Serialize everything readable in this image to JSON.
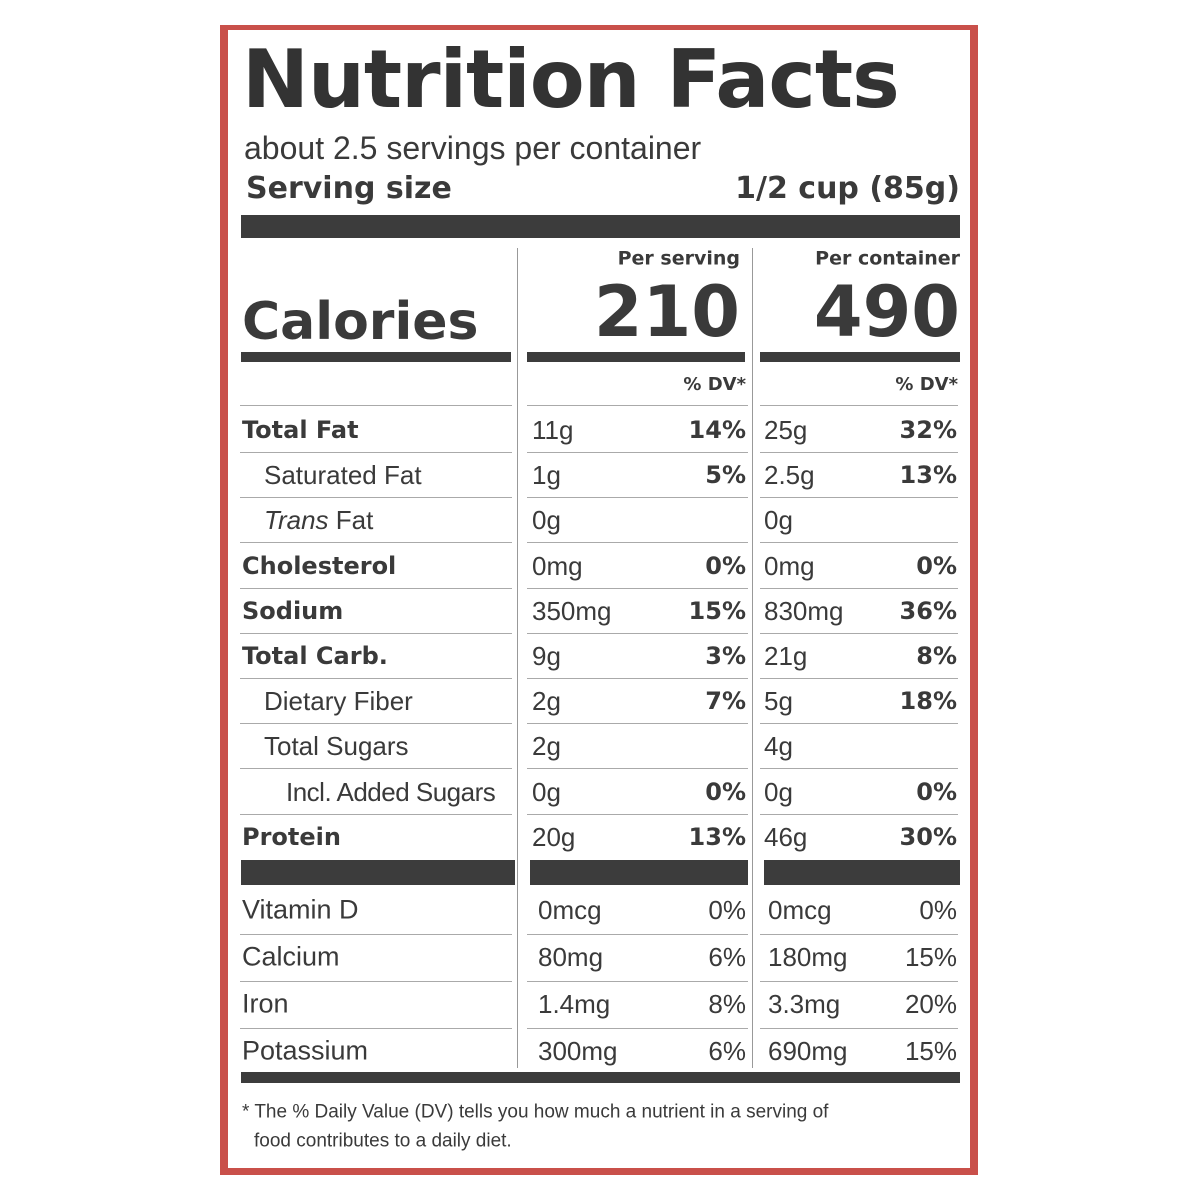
{
  "header": {
    "title": "Nutrition Facts",
    "servings": "about 2.5 servings per container",
    "serving_size_label": "Serving size",
    "serving_size": "1/2 cup (85g)"
  },
  "columns": [
    {
      "heading": "Per serving",
      "calories": 210,
      "dv_label": "% DV*"
    },
    {
      "heading": "Per container",
      "calories": 490,
      "dv_label": "% DV*"
    }
  ],
  "calories_label": "Calories",
  "nutrients": [
    {
      "label": "Total Fat",
      "serving": {
        "amount": "11g",
        "dv": "14%"
      },
      "container": {
        "amount": "25g",
        "dv": "32%"
      }
    },
    {
      "label": "Saturated Fat",
      "serving": {
        "amount": "1g",
        "dv": "5%"
      },
      "container": {
        "amount": "2.5g",
        "dv": "13%"
      }
    },
    {
      "label": [
        "Trans",
        "Fat"
      ],
      "serving": {
        "amount": "0g"
      },
      "container": {
        "amount": "0g"
      }
    },
    {
      "label": "Cholesterol",
      "serving": {
        "amount": "0mg",
        "dv": "0%"
      },
      "container": {
        "amount": "0mg",
        "dv": "0%"
      }
    },
    {
      "label": "Sodium",
      "serving": {
        "amount": "350mg",
        "dv": "15%"
      },
      "container": {
        "amount": "830mg",
        "dv": "36%"
      }
    },
    {
      "label": "Total Carb.",
      "serving": {
        "amount": "9g",
        "dv": "3%"
      },
      "container": {
        "amount": "21g",
        "dv": "8%"
      }
    },
    {
      "label": "Dietary Fiber",
      "serving": {
        "amount": "2g",
        "dv": "7%"
      },
      "container": {
        "amount": "5g",
        "dv": "18%"
      }
    },
    {
      "label": "Total Sugars",
      "serving": {
        "amount": "2g"
      },
      "container": {
        "amount": "4g"
      }
    },
    {
      "label": "Incl. Added Sugars",
      "serving": {
        "amount": "0g",
        "dv": "0%"
      },
      "container": {
        "amount": "0g",
        "dv": "0%"
      }
    },
    {
      "label": "Protein",
      "serving": {
        "amount": "20g",
        "dv": "13%"
      },
      "container": {
        "amount": "46g",
        "dv": "30%"
      }
    }
  ],
  "vitamins": [
    {
      "label": "Vitamin D",
      "serving": {
        "amount": "0mcg",
        "dv": "0%"
      },
      "container": {
        "amount": "0mcg",
        "dv": "0%"
      }
    },
    {
      "label": "Calcium",
      "serving": {
        "amount": "80mg",
        "dv": "6%"
      },
      "container": {
        "amount": "180mg",
        "dv": "15%"
      }
    },
    {
      "label": "Iron",
      "serving": {
        "amount": "1.4mg",
        "dv": "8%"
      },
      "container": {
        "amount": "3.3mg",
        "dv": "20%"
      }
    },
    {
      "label": "Potassium",
      "serving": {
        "amount": "300mg",
        "dv": "6%"
      },
      "container": {
        "amount": "690mg",
        "dv": "15%"
      }
    }
  ],
  "footnote": [
    "* The % Daily Value (DV) tells you how much a nutrient in a serving of",
    "food contributes to a daily diet."
  ]
}
